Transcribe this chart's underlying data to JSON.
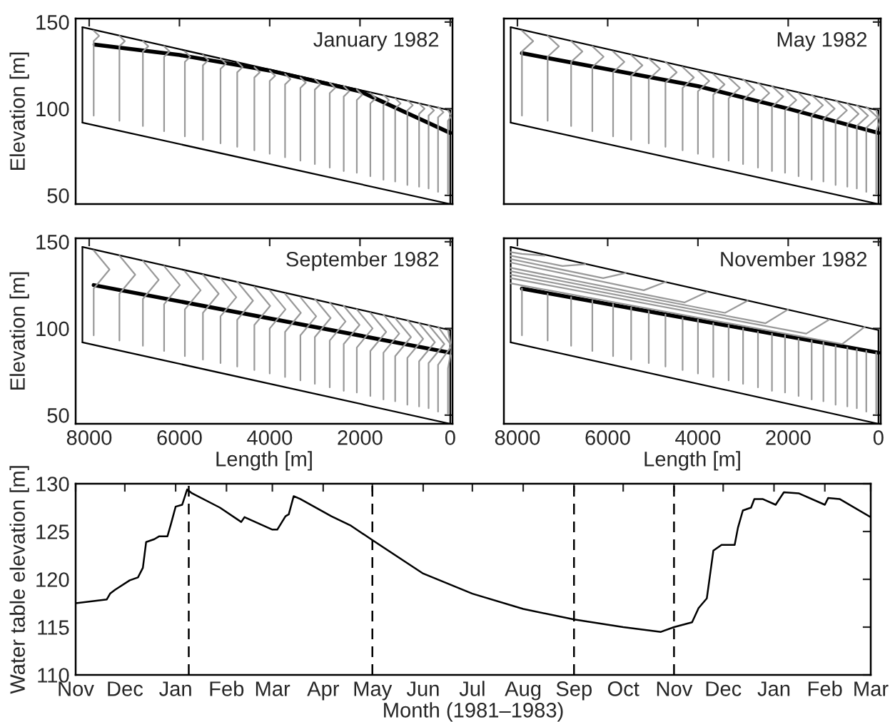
{
  "chart_data": [
    {
      "type": "line",
      "annotations": [
        "January 1982"
      ],
      "ylabel": "Elevation [m]",
      "xlim": [
        8300,
        -50
      ],
      "ylim": [
        45,
        152
      ],
      "xticks": [
        8000,
        6000,
        4000,
        2000,
        0
      ],
      "yticks": [
        50,
        100,
        150
      ],
      "tick_labels": "y",
      "series": [
        {
          "color": "#000000",
          "x": [
            7880,
            6000,
            4000,
            3000,
            2000,
            1500,
            1000,
            500,
            0
          ],
          "values": [
            137,
            131,
            122,
            116,
            110,
            104,
            98,
            92,
            86
          ]
        },
        {
          "color": "#000000",
          "x": [
            8150,
            0
          ],
          "values": [
            147,
            99
          ]
        },
        {
          "color": "#000000",
          "x": [
            8150,
            0
          ],
          "values": [
            92,
            45
          ]
        },
        {
          "color": "#000000",
          "x": [
            8150,
            8150
          ],
          "values": [
            92,
            147
          ]
        },
        {
          "color": "#000000",
          "x": [
            0,
            0
          ],
          "values": [
            45,
            99
          ]
        },
        {
          "color": "#999999",
          "x": [
            7900,
            7900,
            7780,
            7900
          ],
          "values": [
            96,
            139,
            142,
            145
          ]
        },
        {
          "color": "#999999",
          "x": [
            7330,
            7330,
            7210,
            7330
          ],
          "values": [
            93,
            136,
            139,
            142
          ]
        },
        {
          "color": "#999999",
          "x": [
            6810,
            6810,
            6690,
            6810
          ],
          "values": [
            90,
            133,
            136,
            139
          ]
        },
        {
          "color": "#999999",
          "x": [
            6340,
            6340,
            6220,
            6340
          ],
          "values": [
            87,
            130,
            133,
            136
          ]
        },
        {
          "color": "#999999",
          "x": [
            5880,
            5880,
            5760,
            5880
          ],
          "values": [
            84,
            127,
            130,
            133
          ]
        },
        {
          "color": "#999999",
          "x": [
            5480,
            5480,
            5360,
            5480
          ],
          "values": [
            82,
            125,
            128,
            131
          ]
        },
        {
          "color": "#999999",
          "x": [
            5090,
            5090,
            4970,
            5090
          ],
          "values": [
            80,
            123,
            126,
            129
          ]
        },
        {
          "color": "#999999",
          "x": [
            4720,
            4720,
            4600,
            4720
          ],
          "values": [
            78,
            121,
            124,
            127
          ]
        },
        {
          "color": "#999999",
          "x": [
            4340,
            4340,
            4220,
            4340
          ],
          "values": [
            76,
            118,
            121,
            124
          ]
        },
        {
          "color": "#999999",
          "x": [
            4000,
            4000,
            3880,
            4000
          ],
          "values": [
            74,
            116,
            119,
            122
          ]
        },
        {
          "color": "#999999",
          "x": [
            3660,
            3660,
            3540,
            3660
          ],
          "values": [
            72,
            114,
            117,
            120
          ]
        },
        {
          "color": "#999999",
          "x": [
            3320,
            3320,
            3200,
            3320
          ],
          "values": [
            70,
            112,
            115,
            118
          ]
        },
        {
          "color": "#999999",
          "x": [
            3000,
            3000,
            2880,
            3000
          ],
          "values": [
            68,
            111,
            114,
            117
          ]
        },
        {
          "color": "#999999",
          "x": [
            2670,
            2670,
            2550,
            2670
          ],
          "values": [
            66,
            109,
            112,
            115
          ]
        },
        {
          "color": "#999999",
          "x": [
            2360,
            2360,
            2240,
            2360
          ],
          "values": [
            64,
            107,
            110,
            113
          ]
        },
        {
          "color": "#999999",
          "x": [
            2070,
            2070,
            1950,
            2070
          ],
          "values": [
            63,
            105,
            108,
            111
          ]
        },
        {
          "color": "#999999",
          "x": [
            1770,
            1770,
            1650,
            1770
          ],
          "values": [
            61,
            103,
            106,
            109
          ]
        },
        {
          "color": "#999999",
          "x": [
            1480,
            1480,
            1360,
            1480
          ],
          "values": [
            59,
            102,
            105,
            108
          ]
        },
        {
          "color": "#999999",
          "x": [
            1220,
            1220,
            1100,
            1220
          ],
          "values": [
            58,
            100,
            103,
            106
          ]
        },
        {
          "color": "#999999",
          "x": [
            950,
            950,
            830,
            950
          ],
          "values": [
            56,
            99,
            102,
            105
          ]
        },
        {
          "color": "#999999",
          "x": [
            690,
            690,
            570,
            690
          ],
          "values": [
            55,
            97,
            100,
            103
          ]
        },
        {
          "color": "#999999",
          "x": [
            480,
            480,
            360,
            480
          ],
          "values": [
            54,
            96,
            99,
            102
          ]
        },
        {
          "color": "#999999",
          "x": [
            270,
            270,
            150,
            270
          ],
          "values": [
            52,
            95,
            98,
            101
          ]
        },
        {
          "color": "#999999",
          "x": [
            50,
            50,
            -30,
            50
          ],
          "values": [
            51,
            93,
            96,
            99
          ]
        }
      ]
    },
    {
      "type": "line",
      "annotations": [
        "May 1982"
      ],
      "xlim": [
        8300,
        -50
      ],
      "ylim": [
        45,
        152
      ],
      "xticks": [
        8000,
        6000,
        4000,
        2000,
        0
      ],
      "yticks": [
        50,
        100,
        150
      ],
      "tick_labels": false,
      "series": [
        {
          "color": "#000000",
          "x": [
            7900,
            4000,
            2000,
            0
          ],
          "values": [
            132,
            113,
            100,
            86
          ]
        },
        {
          "color": "#000000",
          "x": [
            8150,
            0
          ],
          "values": [
            147,
            99
          ]
        },
        {
          "color": "#000000",
          "x": [
            8150,
            0
          ],
          "values": [
            92,
            45
          ]
        },
        {
          "color": "#000000",
          "x": [
            8150,
            8150
          ],
          "values": [
            92,
            147
          ]
        },
        {
          "color": "#000000",
          "x": [
            0,
            0
          ],
          "values": [
            45,
            99
          ]
        },
        {
          "color": "#999999",
          "x": [
            7900,
            7900,
            7650,
            7900
          ],
          "values": [
            96,
            133,
            139,
            145
          ]
        },
        {
          "color": "#999999",
          "x": [
            7330,
            7330,
            7080,
            7330
          ],
          "values": [
            93,
            130,
            136,
            142
          ]
        },
        {
          "color": "#999999",
          "x": [
            6810,
            6810,
            6560,
            6810
          ],
          "values": [
            90,
            127,
            133,
            139
          ]
        },
        {
          "color": "#999999",
          "x": [
            6340,
            6340,
            6090,
            6340
          ],
          "values": [
            87,
            124,
            130,
            136
          ]
        },
        {
          "color": "#999999",
          "x": [
            5880,
            5880,
            5630,
            5880
          ],
          "values": [
            84,
            121,
            127,
            133
          ]
        },
        {
          "color": "#999999",
          "x": [
            5480,
            5480,
            5230,
            5480
          ],
          "values": [
            82,
            119,
            125,
            131
          ]
        },
        {
          "color": "#999999",
          "x": [
            5090,
            5090,
            4840,
            5090
          ],
          "values": [
            80,
            117,
            123,
            129
          ]
        },
        {
          "color": "#999999",
          "x": [
            4720,
            4720,
            4470,
            4720
          ],
          "values": [
            78,
            115,
            121,
            127
          ]
        },
        {
          "color": "#999999",
          "x": [
            4340,
            4340,
            4090,
            4340
          ],
          "values": [
            76,
            112,
            118,
            124
          ]
        },
        {
          "color": "#999999",
          "x": [
            4000,
            4000,
            3750,
            4000
          ],
          "values": [
            74,
            110,
            116,
            122
          ]
        },
        {
          "color": "#999999",
          "x": [
            3660,
            3660,
            3410,
            3660
          ],
          "values": [
            72,
            108,
            114,
            120
          ]
        },
        {
          "color": "#999999",
          "x": [
            3320,
            3320,
            3070,
            3320
          ],
          "values": [
            70,
            106,
            112,
            118
          ]
        },
        {
          "color": "#999999",
          "x": [
            3000,
            3000,
            2750,
            3000
          ],
          "values": [
            68,
            105,
            111,
            117
          ]
        },
        {
          "color": "#999999",
          "x": [
            2670,
            2670,
            2420,
            2670
          ],
          "values": [
            66,
            103,
            109,
            115
          ]
        },
        {
          "color": "#999999",
          "x": [
            2360,
            2360,
            2110,
            2360
          ],
          "values": [
            64,
            101,
            107,
            113
          ]
        },
        {
          "color": "#999999",
          "x": [
            2070,
            2070,
            1820,
            2070
          ],
          "values": [
            63,
            99,
            105,
            111
          ]
        },
        {
          "color": "#999999",
          "x": [
            1770,
            1770,
            1520,
            1770
          ],
          "values": [
            61,
            97,
            103,
            109
          ]
        },
        {
          "color": "#999999",
          "x": [
            1480,
            1480,
            1230,
            1480
          ],
          "values": [
            59,
            96,
            102,
            108
          ]
        },
        {
          "color": "#999999",
          "x": [
            1220,
            1220,
            970,
            1220
          ],
          "values": [
            58,
            94,
            100,
            106
          ]
        },
        {
          "color": "#999999",
          "x": [
            950,
            950,
            700,
            950
          ],
          "values": [
            56,
            93,
            99,
            105
          ]
        },
        {
          "color": "#999999",
          "x": [
            690,
            690,
            440,
            690
          ],
          "values": [
            55,
            91,
            97,
            103
          ]
        },
        {
          "color": "#999999",
          "x": [
            480,
            480,
            230,
            480
          ],
          "values": [
            54,
            90,
            96,
            102
          ]
        },
        {
          "color": "#999999",
          "x": [
            270,
            270,
            20,
            270
          ],
          "values": [
            52,
            89,
            95,
            101
          ]
        },
        {
          "color": "#999999",
          "x": [
            50,
            50,
            -30,
            50
          ],
          "values": [
            51,
            87,
            93,
            99
          ]
        }
      ]
    },
    {
      "type": "line",
      "annotations": [
        "September 1982"
      ],
      "xlabel": "Length [m]",
      "ylabel": "Elevation [m]",
      "xlim": [
        8300,
        -50
      ],
      "ylim": [
        45,
        152
      ],
      "xticks": [
        8000,
        6000,
        4000,
        2000,
        0
      ],
      "yticks": [
        50,
        100,
        150
      ],
      "series": [
        {
          "color": "#000000",
          "x": [
            7900,
            0
          ],
          "values": [
            125,
            86
          ]
        },
        {
          "color": "#000000",
          "x": [
            8150,
            0
          ],
          "values": [
            147,
            99
          ]
        },
        {
          "color": "#000000",
          "x": [
            8150,
            0
          ],
          "values": [
            92,
            45
          ]
        },
        {
          "color": "#000000",
          "x": [
            8150,
            8150
          ],
          "values": [
            92,
            147
          ]
        },
        {
          "color": "#000000",
          "x": [
            0,
            0
          ],
          "values": [
            45,
            99
          ]
        },
        {
          "color": "#999999",
          "x": [
            7900,
            7900,
            7550,
            7900
          ],
          "values": [
            96,
            123,
            134,
            145
          ]
        },
        {
          "color": "#999999",
          "x": [
            7330,
            7330,
            6980,
            7330
          ],
          "values": [
            93,
            120,
            131,
            142
          ]
        },
        {
          "color": "#999999",
          "x": [
            6810,
            6810,
            6460,
            6810
          ],
          "values": [
            90,
            117,
            128,
            139
          ]
        },
        {
          "color": "#999999",
          "x": [
            6340,
            6340,
            5990,
            6340
          ],
          "values": [
            87,
            114,
            125,
            136
          ]
        },
        {
          "color": "#999999",
          "x": [
            5880,
            5880,
            5530,
            5880
          ],
          "values": [
            84,
            111,
            122,
            133
          ]
        },
        {
          "color": "#999999",
          "x": [
            5480,
            5480,
            5130,
            5480
          ],
          "values": [
            82,
            109,
            120,
            131
          ]
        },
        {
          "color": "#999999",
          "x": [
            5090,
            5090,
            4740,
            5090
          ],
          "values": [
            80,
            107,
            118,
            129
          ]
        },
        {
          "color": "#999999",
          "x": [
            4720,
            4720,
            4370,
            4720
          ],
          "values": [
            78,
            105,
            116,
            127
          ]
        },
        {
          "color": "#999999",
          "x": [
            4340,
            4340,
            3990,
            4340
          ],
          "values": [
            76,
            102,
            113,
            124
          ]
        },
        {
          "color": "#999999",
          "x": [
            4000,
            4000,
            3650,
            4000
          ],
          "values": [
            74,
            100,
            111,
            122
          ]
        },
        {
          "color": "#999999",
          "x": [
            3660,
            3660,
            3310,
            3660
          ],
          "values": [
            72,
            98,
            109,
            120
          ]
        },
        {
          "color": "#999999",
          "x": [
            3320,
            3320,
            2970,
            3320
          ],
          "values": [
            70,
            96,
            107,
            118
          ]
        },
        {
          "color": "#999999",
          "x": [
            3000,
            3000,
            2650,
            3000
          ],
          "values": [
            68,
            95,
            106,
            117
          ]
        },
        {
          "color": "#999999",
          "x": [
            2670,
            2670,
            2320,
            2670
          ],
          "values": [
            66,
            93,
            104,
            115
          ]
        },
        {
          "color": "#999999",
          "x": [
            2360,
            2360,
            2010,
            2360
          ],
          "values": [
            64,
            91,
            102,
            113
          ]
        },
        {
          "color": "#999999",
          "x": [
            2070,
            2070,
            1720,
            2070
          ],
          "values": [
            63,
            89,
            100,
            111
          ]
        },
        {
          "color": "#999999",
          "x": [
            1770,
            1770,
            1420,
            1770
          ],
          "values": [
            61,
            87,
            98,
            109
          ]
        },
        {
          "color": "#999999",
          "x": [
            1480,
            1480,
            1130,
            1480
          ],
          "values": [
            59,
            86,
            97,
            108
          ]
        },
        {
          "color": "#999999",
          "x": [
            1220,
            1220,
            870,
            1220
          ],
          "values": [
            58,
            84,
            95,
            106
          ]
        },
        {
          "color": "#999999",
          "x": [
            950,
            950,
            600,
            950
          ],
          "values": [
            56,
            83,
            94,
            105
          ]
        },
        {
          "color": "#999999",
          "x": [
            690,
            690,
            340,
            690
          ],
          "values": [
            55,
            81,
            92,
            103
          ]
        },
        {
          "color": "#999999",
          "x": [
            480,
            480,
            130,
            480
          ],
          "values": [
            54,
            80,
            91,
            102
          ]
        },
        {
          "color": "#999999",
          "x": [
            270,
            270,
            -30,
            270
          ],
          "values": [
            52,
            79,
            90,
            101
          ]
        },
        {
          "color": "#999999",
          "x": [
            50,
            50,
            -30,
            50
          ],
          "values": [
            51,
            77,
            88,
            99
          ]
        }
      ]
    },
    {
      "type": "line",
      "annotations": [
        "November 1982"
      ],
      "xlabel": "Length [m]",
      "xlim": [
        8300,
        -50
      ],
      "ylim": [
        45,
        152
      ],
      "xticks": [
        8000,
        6000,
        4000,
        2000,
        0
      ],
      "yticks": [
        50,
        100,
        150
      ],
      "tick_labels": "x",
      "series": [
        {
          "color": "#000000",
          "x": [
            7900,
            0
          ],
          "values": [
            123,
            86
          ]
        },
        {
          "color": "#000000",
          "x": [
            8150,
            0
          ],
          "values": [
            147,
            99
          ]
        },
        {
          "color": "#000000",
          "x": [
            8150,
            0
          ],
          "values": [
            92,
            45
          ]
        },
        {
          "color": "#000000",
          "x": [
            8150,
            8150
          ],
          "values": [
            92,
            147
          ]
        },
        {
          "color": "#000000",
          "x": [
            0,
            0
          ],
          "values": [
            45,
            99
          ]
        },
        {
          "color": "#999999",
          "x": [
            7900,
            7900
          ],
          "values": [
            96,
            123
          ]
        },
        {
          "color": "#999999",
          "x": [
            7330,
            7330
          ],
          "values": [
            93,
            120
          ]
        },
        {
          "color": "#999999",
          "x": [
            6810,
            6810
          ],
          "values": [
            90,
            118
          ]
        },
        {
          "color": "#999999",
          "x": [
            6340,
            6340
          ],
          "values": [
            87,
            116
          ]
        },
        {
          "color": "#999999",
          "x": [
            5880,
            5880
          ],
          "values": [
            84,
            114
          ]
        },
        {
          "color": "#999999",
          "x": [
            5480,
            5480
          ],
          "values": [
            82,
            112
          ]
        },
        {
          "color": "#999999",
          "x": [
            5090,
            5090
          ],
          "values": [
            80,
            110
          ]
        },
        {
          "color": "#999999",
          "x": [
            4720,
            4720
          ],
          "values": [
            78,
            108
          ]
        },
        {
          "color": "#999999",
          "x": [
            4340,
            4340
          ],
          "values": [
            76,
            106
          ]
        },
        {
          "color": "#999999",
          "x": [
            4000,
            4000
          ],
          "values": [
            74,
            105
          ]
        },
        {
          "color": "#999999",
          "x": [
            3660,
            3660
          ],
          "values": [
            72,
            103
          ]
        },
        {
          "color": "#999999",
          "x": [
            3320,
            3320
          ],
          "values": [
            70,
            102
          ]
        },
        {
          "color": "#999999",
          "x": [
            3000,
            3000
          ],
          "values": [
            68,
            100
          ]
        },
        {
          "color": "#999999",
          "x": [
            2670,
            2670
          ],
          "values": [
            66,
            98
          ]
        },
        {
          "color": "#999999",
          "x": [
            2360,
            2360
          ],
          "values": [
            64,
            97
          ]
        },
        {
          "color": "#999999",
          "x": [
            2070,
            2070
          ],
          "values": [
            63,
            96
          ]
        },
        {
          "color": "#999999",
          "x": [
            1770,
            1770
          ],
          "values": [
            61,
            94
          ]
        },
        {
          "color": "#999999",
          "x": [
            1480,
            1480
          ],
          "values": [
            59,
            93
          ]
        },
        {
          "color": "#999999",
          "x": [
            1220,
            1220
          ],
          "values": [
            58,
            92
          ]
        },
        {
          "color": "#999999",
          "x": [
            950,
            950
          ],
          "values": [
            56,
            90
          ]
        },
        {
          "color": "#999999",
          "x": [
            690,
            690
          ],
          "values": [
            55,
            89
          ]
        },
        {
          "color": "#999999",
          "x": [
            480,
            480
          ],
          "values": [
            54,
            88
          ]
        },
        {
          "color": "#999999",
          "x": [
            270,
            270
          ],
          "values": [
            52,
            87
          ]
        },
        {
          "color": "#999999",
          "x": [
            50,
            50
          ],
          "values": [
            51,
            86
          ]
        },
        {
          "color": "#999999",
          "x": [
            8150,
            7900,
            7400
          ],
          "values": [
            144,
            143,
            142
          ]
        },
        {
          "color": "#999999",
          "x": [
            8150,
            7000,
            6500
          ],
          "values": [
            142,
            136,
            137
          ]
        },
        {
          "color": "#999999",
          "x": [
            8150,
            6100,
            5600
          ],
          "values": [
            140,
            129,
            132
          ]
        },
        {
          "color": "#999999",
          "x": [
            8150,
            5200,
            4700
          ],
          "values": [
            138,
            122,
            127
          ]
        },
        {
          "color": "#999999",
          "x": [
            8150,
            4300,
            3800
          ],
          "values": [
            135,
            115,
            121
          ]
        },
        {
          "color": "#999999",
          "x": [
            8150,
            3400,
            2900
          ],
          "values": [
            133,
            109,
            116
          ]
        },
        {
          "color": "#999999",
          "x": [
            8150,
            2500,
            2000
          ],
          "values": [
            131,
            103,
            111
          ]
        },
        {
          "color": "#999999",
          "x": [
            8150,
            1600,
            1100
          ],
          "values": [
            129,
            97,
            105
          ]
        },
        {
          "color": "#999999",
          "x": [
            8150,
            800,
            300
          ],
          "values": [
            126,
            91,
            101
          ]
        }
      ]
    },
    {
      "type": "line",
      "xlabel": "Month (1981–1983)",
      "ylabel": "Water table elevation [m]",
      "xlim": [
        "1981-11-01",
        "1983-03-01"
      ],
      "ylim": [
        110,
        130
      ],
      "yticks": [
        110,
        115,
        120,
        125,
        130
      ],
      "xticks": [
        {
          "value": "1981-11",
          "label": "Nov"
        },
        {
          "value": "1981-12",
          "label": "Dec"
        },
        {
          "value": "1982-01",
          "label": "Jan"
        },
        {
          "value": "1982-02",
          "label": "Feb"
        },
        {
          "value": "1982-03",
          "label": "Mar"
        },
        {
          "value": "1982-04",
          "label": "Apr"
        },
        {
          "value": "1982-05",
          "label": "May"
        },
        {
          "value": "1982-06",
          "label": "Jun"
        },
        {
          "value": "1982-07",
          "label": "Jul"
        },
        {
          "value": "1982-08",
          "label": "Aug"
        },
        {
          "value": "1982-09",
          "label": "Sep"
        },
        {
          "value": "1982-10",
          "label": "Oct"
        },
        {
          "value": "1982-11",
          "label": "Nov"
        },
        {
          "value": "1982-12",
          "label": "Dec"
        },
        {
          "value": "1983-01",
          "label": "Jan"
        },
        {
          "value": "1983-02",
          "label": "Feb"
        },
        {
          "value": "1983-03",
          "label": "Mar"
        }
      ],
      "ref_lines": [
        {
          "axis": "x",
          "value": "1982-01-09",
          "color": "#000000",
          "line_style": "dashed"
        },
        {
          "axis": "x",
          "value": "1982-05-01",
          "color": "#000000",
          "line_style": "dashed"
        },
        {
          "axis": "x",
          "value": "1982-09-01",
          "color": "#000000",
          "line_style": "dashed"
        },
        {
          "axis": "x",
          "value": "1982-11-01",
          "color": "#000000",
          "line_style": "dashed"
        }
      ],
      "series": [
        {
          "color": "#000000",
          "x": [
            "1981-11-01",
            "1981-11-20",
            "1981-11-22",
            "1981-11-25",
            "1981-12-04",
            "1981-12-09",
            "1981-12-12",
            "1981-12-14",
            "1981-12-19",
            "1981-12-22",
            "1981-12-27",
            "1981-12-29",
            "1982-01-01",
            "1982-01-05",
            "1982-01-08",
            "1982-01-11",
            "1982-01-28",
            "1982-02-10",
            "1982-02-12",
            "1982-03-01",
            "1982-03-04",
            "1982-03-09",
            "1982-03-11",
            "1982-03-14",
            "1982-03-18",
            "1982-04-06",
            "1982-04-18",
            "1982-05-01",
            "1982-06-01",
            "1982-07-01",
            "1982-08-01",
            "1982-09-01",
            "1982-10-01",
            "1982-10-24",
            "1982-11-01",
            "1982-11-12",
            "1982-11-16",
            "1982-11-21",
            "1982-11-25",
            "1982-11-30",
            "1982-12-08",
            "1982-12-10",
            "1982-12-13",
            "1982-12-18",
            "1982-12-20",
            "1982-12-25",
            "1983-01-02",
            "1983-01-07",
            "1983-01-16",
            "1983-02-01",
            "1983-02-03",
            "1983-02-10",
            "1983-03-01"
          ],
          "values": [
            117.5,
            117.9,
            118.5,
            118.9,
            119.9,
            120.2,
            121.2,
            123.9,
            124.2,
            124.5,
            124.5,
            125.7,
            127.6,
            127.8,
            129.4,
            129.0,
            127.5,
            126.0,
            126.5,
            125.2,
            125.2,
            126.6,
            126.8,
            128.7,
            128.4,
            126.6,
            125.6,
            124.1,
            120.6,
            118.5,
            116.9,
            115.8,
            115.0,
            114.5,
            115.0,
            115.5,
            117.0,
            118.0,
            123.0,
            123.6,
            123.6,
            125.4,
            127.2,
            127.5,
            128.4,
            128.4,
            127.8,
            129.1,
            129.0,
            127.8,
            128.5,
            128.4,
            126.5
          ]
        }
      ]
    }
  ]
}
